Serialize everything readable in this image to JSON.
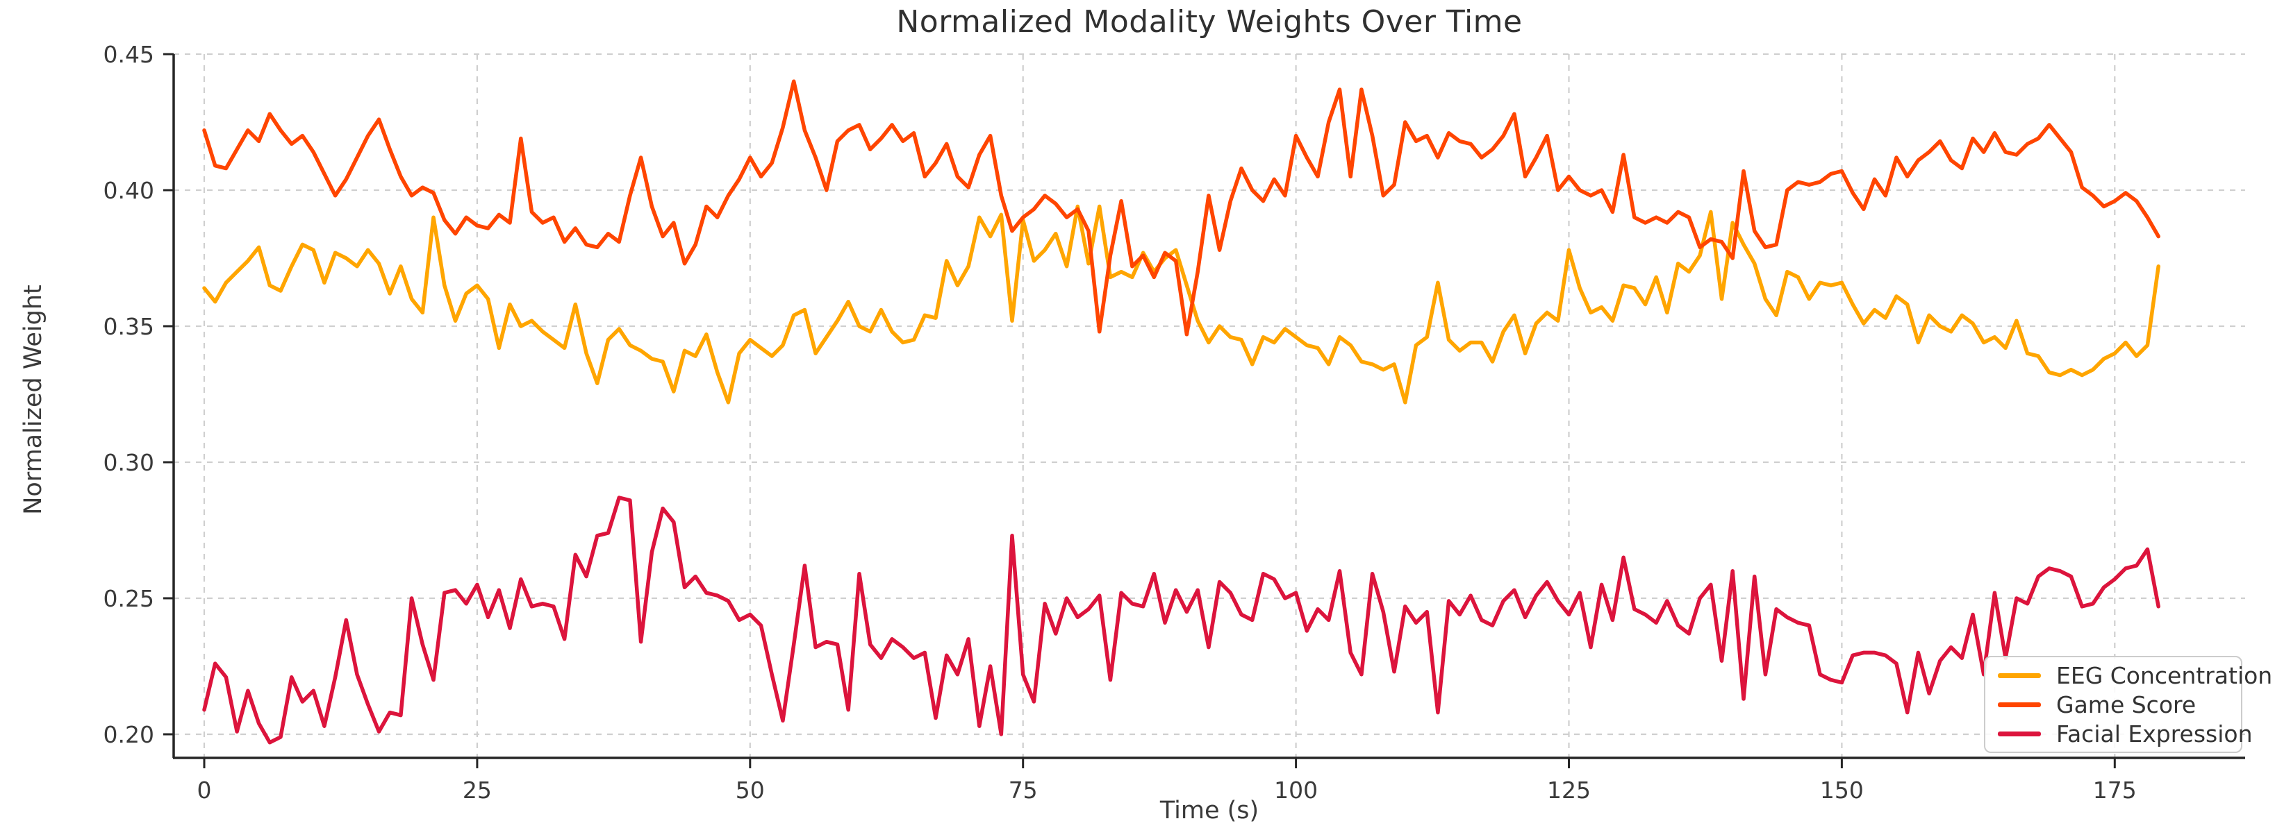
{
  "figure": {
    "title": "Normalized Modality Weights Over Time"
  },
  "axes": {
    "xlabel": "Time (s)",
    "ylabel": "Normalized Weight",
    "x_tick_labels": [
      "0",
      "25",
      "50",
      "75",
      "100",
      "125",
      "150",
      "175"
    ],
    "y_tick_labels": [
      "0.20",
      "0.25",
      "0.30",
      "0.35",
      "0.40",
      "0.45"
    ],
    "tick_color": "#3a3a3a",
    "spine_color": "#262626",
    "grid_color": "#cfcfcf"
  },
  "legend": {
    "items": [
      {
        "label": "EEG Concentration",
        "color": "#FFA500"
      },
      {
        "label": "Game Score",
        "color": "#FF4500"
      },
      {
        "label": "Facial Expression",
        "color": "#DC143C"
      }
    ]
  },
  "chart_data": {
    "type": "line",
    "title": "Normalized Modality Weights Over Time",
    "xlabel": "Time (s)",
    "ylabel": "Normalized Weight",
    "x_start": 0,
    "x_step": 1,
    "x_ticks": [
      0,
      25,
      50,
      75,
      100,
      125,
      150,
      175
    ],
    "y_ticks": [
      0.2,
      0.25,
      0.3,
      0.35,
      0.4,
      0.45
    ],
    "xlim": [
      -2.8,
      187
    ],
    "ylim": [
      0.192,
      0.45
    ],
    "grid": true,
    "grid_style": "dashed",
    "legend_position": "lower right",
    "line_width": 5.5,
    "series": [
      {
        "name": "EEG Concentration",
        "color": "#FFA500",
        "values": [
          0.364,
          0.359,
          0.366,
          0.37,
          0.374,
          0.379,
          0.365,
          0.363,
          0.372,
          0.38,
          0.378,
          0.366,
          0.377,
          0.375,
          0.372,
          0.378,
          0.373,
          0.362,
          0.372,
          0.36,
          0.355,
          0.39,
          0.365,
          0.352,
          0.362,
          0.365,
          0.36,
          0.342,
          0.358,
          0.35,
          0.352,
          0.348,
          0.345,
          0.342,
          0.358,
          0.34,
          0.329,
          0.345,
          0.349,
          0.343,
          0.341,
          0.338,
          0.337,
          0.326,
          0.341,
          0.339,
          0.347,
          0.333,
          0.322,
          0.34,
          0.345,
          0.342,
          0.339,
          0.343,
          0.354,
          0.356,
          0.34,
          0.346,
          0.352,
          0.359,
          0.35,
          0.348,
          0.356,
          0.348,
          0.344,
          0.345,
          0.354,
          0.353,
          0.374,
          0.365,
          0.372,
          0.39,
          0.383,
          0.391,
          0.352,
          0.389,
          0.374,
          0.378,
          0.384,
          0.372,
          0.394,
          0.373,
          0.394,
          0.368,
          0.37,
          0.368,
          0.377,
          0.37,
          0.375,
          0.378,
          0.365,
          0.352,
          0.344,
          0.35,
          0.346,
          0.345,
          0.336,
          0.346,
          0.344,
          0.349,
          0.346,
          0.343,
          0.342,
          0.336,
          0.346,
          0.343,
          0.337,
          0.336,
          0.334,
          0.336,
          0.322,
          0.343,
          0.346,
          0.366,
          0.345,
          0.341,
          0.344,
          0.344,
          0.337,
          0.348,
          0.354,
          0.34,
          0.351,
          0.355,
          0.352,
          0.378,
          0.364,
          0.355,
          0.357,
          0.352,
          0.365,
          0.364,
          0.358,
          0.368,
          0.355,
          0.373,
          0.37,
          0.376,
          0.392,
          0.36,
          0.388,
          0.38,
          0.373,
          0.36,
          0.354,
          0.37,
          0.368,
          0.36,
          0.366,
          0.365,
          0.366,
          0.358,
          0.351,
          0.356,
          0.353,
          0.361,
          0.358,
          0.344,
          0.354,
          0.35,
          0.348,
          0.354,
          0.351,
          0.344,
          0.346,
          0.342,
          0.352,
          0.34,
          0.339,
          0.333,
          0.332,
          0.334,
          0.332,
          0.334,
          0.338,
          0.34,
          0.344,
          0.339,
          0.343,
          0.372
        ]
      },
      {
        "name": "Game Score",
        "color": "#FF4500",
        "values": [
          0.422,
          0.409,
          0.408,
          0.415,
          0.422,
          0.418,
          0.428,
          0.422,
          0.417,
          0.42,
          0.414,
          0.406,
          0.398,
          0.404,
          0.412,
          0.42,
          0.426,
          0.415,
          0.405,
          0.398,
          0.401,
          0.399,
          0.389,
          0.384,
          0.39,
          0.387,
          0.386,
          0.391,
          0.388,
          0.419,
          0.392,
          0.388,
          0.39,
          0.381,
          0.386,
          0.38,
          0.379,
          0.384,
          0.381,
          0.398,
          0.412,
          0.394,
          0.383,
          0.388,
          0.373,
          0.38,
          0.394,
          0.39,
          0.398,
          0.404,
          0.412,
          0.405,
          0.41,
          0.423,
          0.44,
          0.422,
          0.412,
          0.4,
          0.418,
          0.422,
          0.424,
          0.415,
          0.419,
          0.424,
          0.418,
          0.421,
          0.405,
          0.41,
          0.417,
          0.405,
          0.401,
          0.413,
          0.42,
          0.398,
          0.385,
          0.39,
          0.393,
          0.398,
          0.395,
          0.39,
          0.393,
          0.385,
          0.348,
          0.376,
          0.396,
          0.372,
          0.376,
          0.368,
          0.377,
          0.374,
          0.347,
          0.37,
          0.398,
          0.378,
          0.396,
          0.408,
          0.4,
          0.396,
          0.404,
          0.398,
          0.42,
          0.412,
          0.405,
          0.425,
          0.437,
          0.405,
          0.437,
          0.42,
          0.398,
          0.402,
          0.425,
          0.418,
          0.42,
          0.412,
          0.421,
          0.418,
          0.417,
          0.412,
          0.415,
          0.42,
          0.428,
          0.405,
          0.412,
          0.42,
          0.4,
          0.405,
          0.4,
          0.398,
          0.4,
          0.392,
          0.413,
          0.39,
          0.388,
          0.39,
          0.388,
          0.392,
          0.39,
          0.379,
          0.382,
          0.381,
          0.375,
          0.407,
          0.385,
          0.379,
          0.38,
          0.4,
          0.403,
          0.402,
          0.403,
          0.406,
          0.407,
          0.399,
          0.393,
          0.404,
          0.398,
          0.412,
          0.405,
          0.411,
          0.414,
          0.418,
          0.411,
          0.408,
          0.419,
          0.414,
          0.421,
          0.414,
          0.413,
          0.417,
          0.419,
          0.424,
          0.419,
          0.414,
          0.401,
          0.398,
          0.394,
          0.396,
          0.399,
          0.396,
          0.39,
          0.383
        ]
      },
      {
        "name": "Facial Expression",
        "color": "#DC143C",
        "values": [
          0.209,
          0.226,
          0.221,
          0.201,
          0.216,
          0.204,
          0.197,
          0.199,
          0.221,
          0.212,
          0.216,
          0.203,
          0.221,
          0.242,
          0.222,
          0.211,
          0.201,
          0.208,
          0.207,
          0.25,
          0.233,
          0.22,
          0.252,
          0.253,
          0.248,
          0.255,
          0.243,
          0.253,
          0.239,
          0.257,
          0.247,
          0.248,
          0.247,
          0.235,
          0.266,
          0.258,
          0.273,
          0.274,
          0.287,
          0.286,
          0.234,
          0.267,
          0.283,
          0.278,
          0.254,
          0.258,
          0.252,
          0.251,
          0.249,
          0.242,
          0.244,
          0.24,
          0.222,
          0.205,
          0.233,
          0.262,
          0.232,
          0.234,
          0.233,
          0.209,
          0.259,
          0.233,
          0.228,
          0.235,
          0.232,
          0.228,
          0.23,
          0.206,
          0.229,
          0.222,
          0.235,
          0.203,
          0.225,
          0.2,
          0.273,
          0.222,
          0.212,
          0.248,
          0.237,
          0.25,
          0.243,
          0.246,
          0.251,
          0.22,
          0.252,
          0.248,
          0.247,
          0.259,
          0.241,
          0.253,
          0.245,
          0.253,
          0.232,
          0.256,
          0.252,
          0.244,
          0.242,
          0.259,
          0.257,
          0.25,
          0.252,
          0.238,
          0.246,
          0.242,
          0.26,
          0.23,
          0.222,
          0.259,
          0.245,
          0.223,
          0.247,
          0.241,
          0.245,
          0.208,
          0.249,
          0.244,
          0.251,
          0.242,
          0.24,
          0.249,
          0.253,
          0.243,
          0.251,
          0.256,
          0.249,
          0.244,
          0.252,
          0.232,
          0.255,
          0.242,
          0.265,
          0.246,
          0.244,
          0.241,
          0.249,
          0.24,
          0.237,
          0.25,
          0.255,
          0.227,
          0.26,
          0.213,
          0.258,
          0.222,
          0.246,
          0.243,
          0.241,
          0.24,
          0.222,
          0.22,
          0.219,
          0.229,
          0.23,
          0.23,
          0.229,
          0.226,
          0.208,
          0.23,
          0.215,
          0.227,
          0.232,
          0.228,
          0.244,
          0.222,
          0.252,
          0.228,
          0.25,
          0.248,
          0.258,
          0.261,
          0.26,
          0.258,
          0.247,
          0.248,
          0.254,
          0.257,
          0.261,
          0.262,
          0.268,
          0.247
        ]
      }
    ]
  }
}
